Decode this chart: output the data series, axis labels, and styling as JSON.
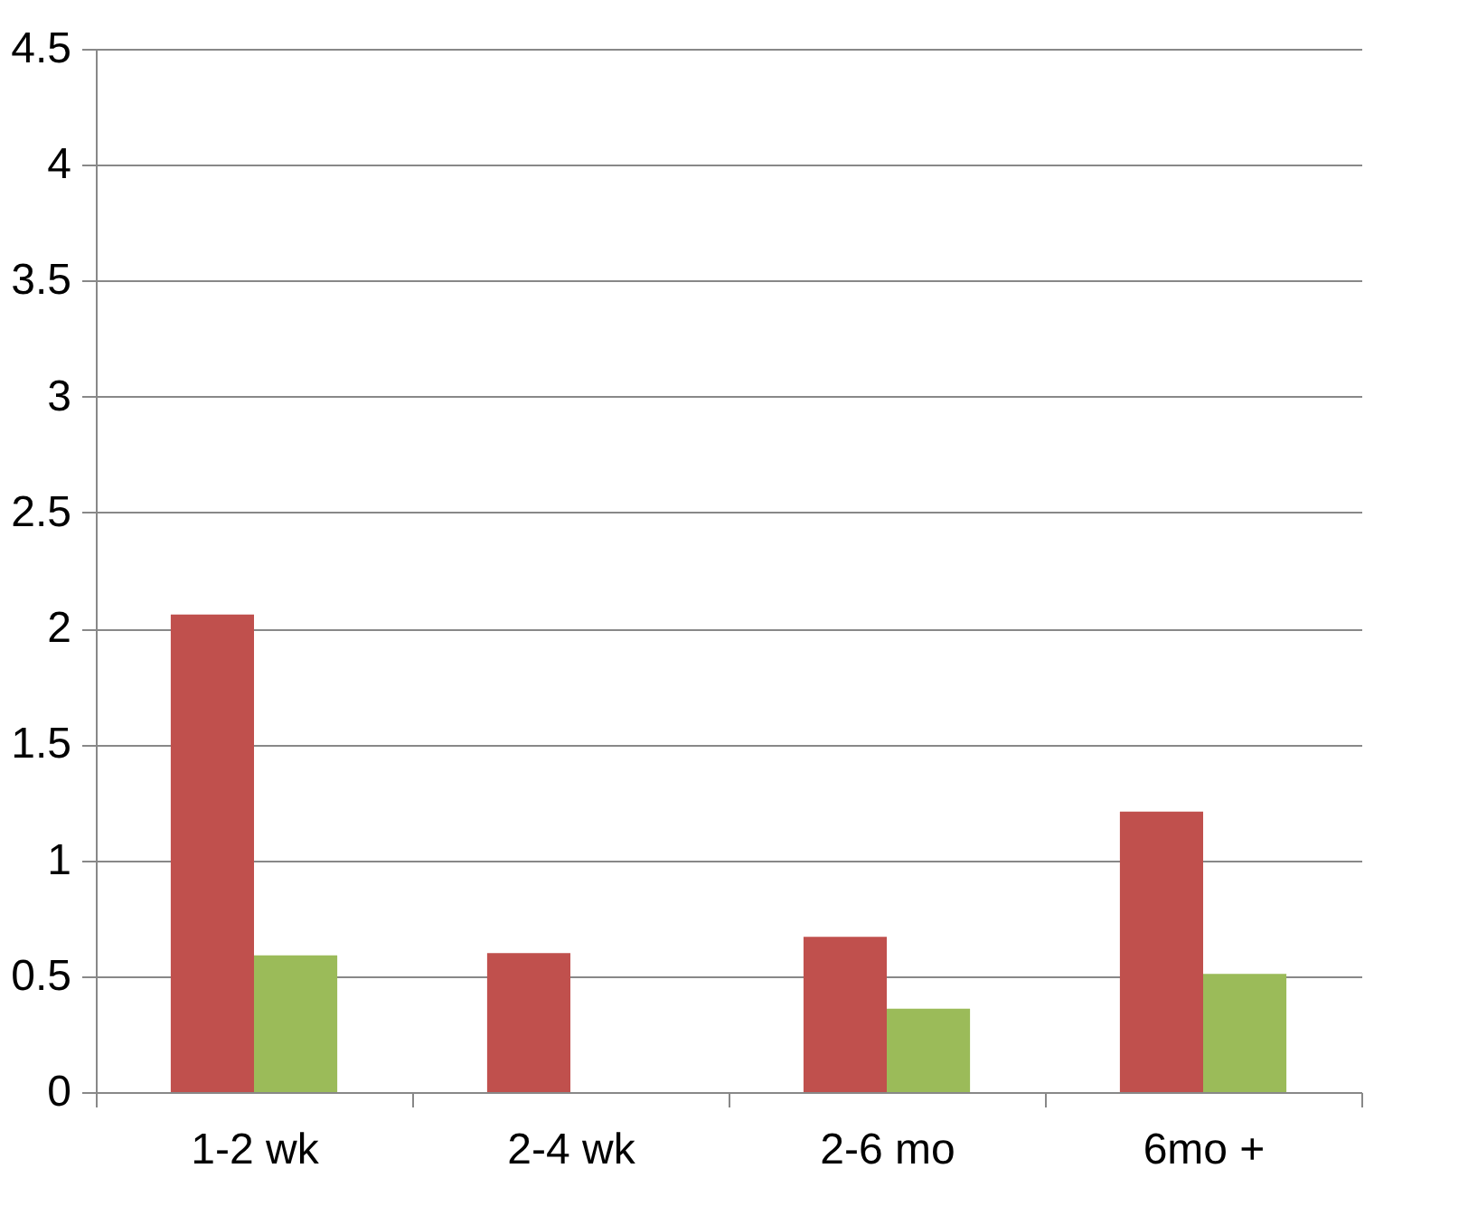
{
  "chart_data": {
    "type": "bar",
    "categories": [
      "1-2 wk",
      "2-4 wk",
      "2-6 mo",
      "6mo +"
    ],
    "series": [
      {
        "color": "#c0504d",
        "values": [
          2.06,
          0.6,
          0.67,
          1.21
        ]
      },
      {
        "color": "#9bbb59",
        "values": [
          0.59,
          null,
          0.36,
          0.51
        ]
      }
    ],
    "ylim": [
      0,
      4.5
    ],
    "yticks": [
      0,
      0.5,
      1,
      1.5,
      2,
      2.5,
      3,
      3.5,
      4,
      4.5
    ],
    "grid": "y",
    "legend": false
  }
}
